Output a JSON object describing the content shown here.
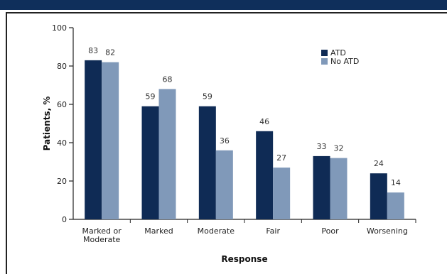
{
  "chart_data": {
    "type": "bar",
    "categories": [
      [
        "Marked or",
        "Moderate"
      ],
      [
        "Marked"
      ],
      [
        "Moderate"
      ],
      [
        "Fair"
      ],
      [
        "Poor"
      ],
      [
        "Worsening"
      ]
    ],
    "series": [
      {
        "name": "ATD",
        "values": [
          83,
          59,
          59,
          46,
          33,
          24
        ],
        "color": "#0f2b55"
      },
      {
        "name": "No ATD",
        "values": [
          82,
          68,
          36,
          27,
          32,
          14
        ],
        "color": "#8099b9"
      }
    ],
    "xlabel": "Response",
    "ylabel": "Patients, %",
    "ylim": [
      0,
      100
    ],
    "yticks": [
      0,
      20,
      40,
      60,
      80,
      100
    ],
    "legend_position": "top-right",
    "grid": false
  }
}
